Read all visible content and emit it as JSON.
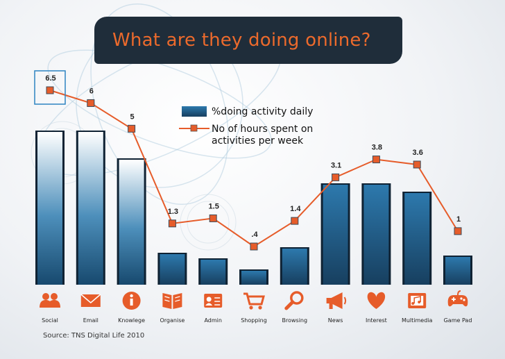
{
  "title": "What are they doing online?",
  "source": "Source: TNS Digital Life 2010",
  "colors": {
    "bar_dark": "#1a567e",
    "bar_light": "#ffffff",
    "line": "#e65c2a",
    "marker": "#e65c2a",
    "icon": "#e65c2a",
    "highlight_box": "#2d83c1"
  },
  "chart_data": {
    "type": "bar",
    "categories": [
      "Social",
      "Email",
      "Knowlege",
      "Organise",
      "Admin",
      "Shopping",
      "Browsing",
      "News",
      "Interest",
      "Multimedia",
      "Game Pad"
    ],
    "icons": [
      "people-icon",
      "envelope-icon",
      "info-icon",
      "book-icon",
      "id-card-icon",
      "cart-icon",
      "magnifier-icon",
      "megaphone-icon",
      "heart-icon",
      "film-music-icon",
      "gamepad-icon"
    ],
    "ylim": [
      0,
      7
    ],
    "series": [
      {
        "name": "%doing activity daily",
        "type": "bar",
        "values": [
          5.5,
          5.5,
          4.5,
          1.1,
          0.9,
          0.5,
          1.3,
          3.6,
          3.6,
          3.3,
          1.0
        ]
      },
      {
        "name": "No of hours spent on activities per week",
        "type": "line",
        "values": [
          6.5,
          6,
          5,
          1.3,
          1.5,
          0.4,
          1.4,
          3.1,
          3.8,
          3.6,
          1
        ],
        "labels": [
          "6.5",
          "6",
          "5",
          "1.3",
          "1.5",
          ".4",
          "1.4",
          "3.1",
          "3.8",
          "3.6",
          "1"
        ]
      }
    ],
    "highlighted_point": 0,
    "legend_position": "top-center",
    "grid": false
  }
}
